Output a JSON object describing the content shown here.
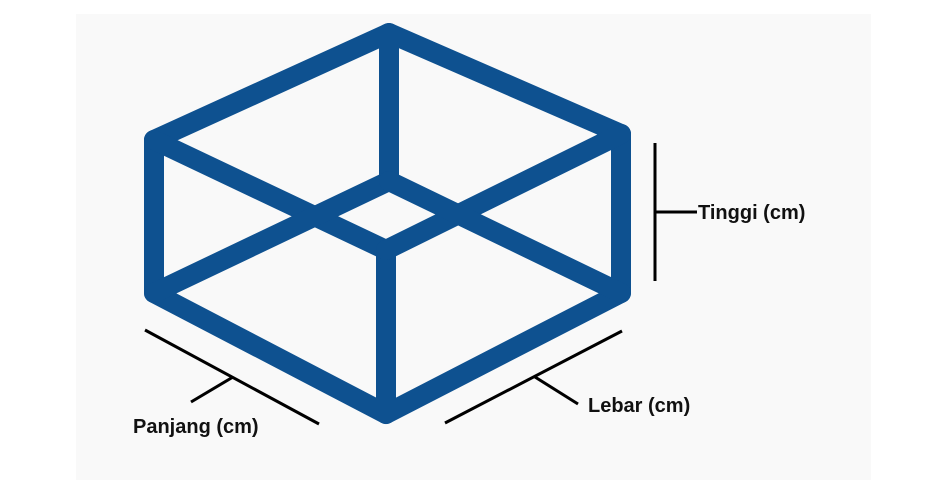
{
  "labels": {
    "height": "Tinggi (cm)",
    "width": "Lebar (cm)",
    "length": "Panjang (cm)"
  },
  "colors": {
    "frame": "#0e5190",
    "annotation": "#000000",
    "panel_background": "#f9f9f9"
  }
}
